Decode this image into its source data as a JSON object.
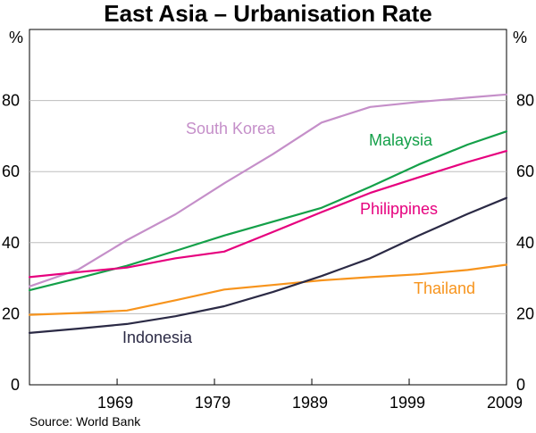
{
  "chart_data": {
    "type": "line",
    "title": "East Asia – Urbanisation Rate",
    "yunit_left": "%",
    "yunit_right": "%",
    "source": "Source: World Bank",
    "xlim": [
      1960,
      2009
    ],
    "ylim": [
      0,
      100
    ],
    "xticks": [
      1969,
      1979,
      1989,
      1999,
      2009
    ],
    "yticks": [
      0,
      20,
      40,
      60,
      80
    ],
    "x": [
      1960,
      1965,
      1970,
      1975,
      1980,
      1985,
      1990,
      1995,
      2000,
      2005,
      2009
    ],
    "series": [
      {
        "name": "South Korea",
        "color": "#c58fc9",
        "values": [
          27.7,
          32.4,
          40.7,
          48.0,
          56.7,
          64.9,
          73.8,
          78.2,
          79.6,
          80.8,
          81.7
        ]
      },
      {
        "name": "Malaysia",
        "color": "#14a049",
        "values": [
          26.6,
          30.0,
          33.5,
          37.7,
          42.0,
          45.9,
          49.8,
          55.7,
          62.0,
          67.6,
          71.3
        ]
      },
      {
        "name": "Philippines",
        "color": "#e6007e",
        "values": [
          30.3,
          31.7,
          33.0,
          35.6,
          37.5,
          43.0,
          48.6,
          54.0,
          58.4,
          62.7,
          65.8
        ]
      },
      {
        "name": "Thailand",
        "color": "#f7941d",
        "values": [
          19.7,
          20.2,
          20.9,
          23.8,
          26.8,
          28.1,
          29.4,
          30.3,
          31.1,
          32.3,
          33.8
        ]
      },
      {
        "name": "Indonesia",
        "color": "#2b2a45",
        "values": [
          14.6,
          15.8,
          17.1,
          19.3,
          22.1,
          26.1,
          30.6,
          35.6,
          42.0,
          48.1,
          52.6
        ]
      }
    ]
  }
}
